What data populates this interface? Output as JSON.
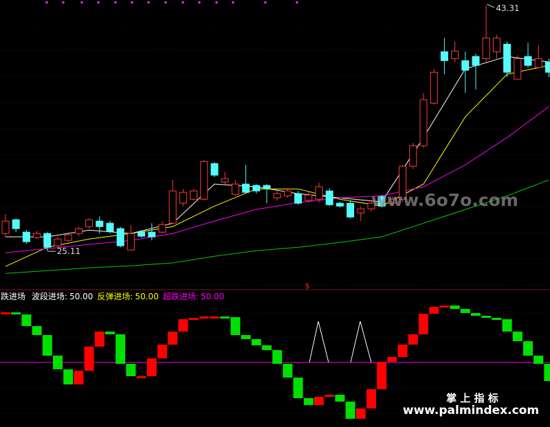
{
  "chart_data": [
    {
      "type": "candlestick",
      "ylim": [
        22.37,
        43.72
      ],
      "up_color": "#ff3c3c",
      "down_color": "#54fcfc",
      "open": [
        26.43,
        27.45,
        26.53,
        26.13,
        26.43,
        25.52,
        25.92,
        26.43,
        26.94,
        27.35,
        27.19,
        26.79,
        25.21,
        26.53,
        26.53,
        26.53,
        27.19,
        28.67,
        28.97,
        28.97,
        31.61,
        30.24,
        29.33,
        30.09,
        29.99,
        29.99,
        29.07,
        29.22,
        29.38,
        28.87,
        28.97,
        29.58,
        28.67,
        28.67,
        27.95,
        28.26,
        29.17,
        28.67,
        28.97,
        31.41,
        32.93,
        36.08,
        39.89,
        39.38,
        39.23,
        39.54,
        39.38,
        39.89,
        40.45,
        37.86,
        39.54,
        38.72,
        39.13
      ],
      "high": [
        27.85,
        27.55,
        26.68,
        26.63,
        26.53,
        26.18,
        26.53,
        26.94,
        27.55,
        27.7,
        27.35,
        26.94,
        27.04,
        26.68,
        27.19,
        27.35,
        30.39,
        29.73,
        29.73,
        31.87,
        31.71,
        31.0,
        30.39,
        31.51,
        30.09,
        30.09,
        29.58,
        29.78,
        29.58,
        29.48,
        30.19,
        29.78,
        28.77,
        28.87,
        28.46,
        28.87,
        29.28,
        29.17,
        31.51,
        33.14,
        36.84,
        38.62,
        40.91,
        40.65,
        39.89,
        39.74,
        43.31,
        41.16,
        40.65,
        39.64,
        40.55,
        40.4,
        39.38
      ],
      "low": [
        26.18,
        26.53,
        25.67,
        26.02,
        25.11,
        25.41,
        25.82,
        26.23,
        26.79,
        26.43,
        26.43,
        25.41,
        25.21,
        26.13,
        25.92,
        26.43,
        27.09,
        28.46,
        28.87,
        28.87,
        30.6,
        30.09,
        29.22,
        29.38,
        29.38,
        28.67,
        28.87,
        29.07,
        28.56,
        28.72,
        28.72,
        28.46,
        28.36,
        27.55,
        27.35,
        28.06,
        28.36,
        28.46,
        28.77,
        31.21,
        32.78,
        35.98,
        38.22,
        39.13,
        36.84,
        37.1,
        39.13,
        39.38,
        38.01,
        37.86,
        38.72,
        38.62,
        38.01
      ],
      "close": [
        27.35,
        26.79,
        25.82,
        26.43,
        25.41,
        26.02,
        26.33,
        26.79,
        27.45,
        26.94,
        26.58,
        25.52,
        26.43,
        26.23,
        26.18,
        27.09,
        29.58,
        29.48,
        29.58,
        31.76,
        30.75,
        30.49,
        30.09,
        29.48,
        29.58,
        29.78,
        29.38,
        29.58,
        28.67,
        29.28,
        29.89,
        28.56,
        28.46,
        27.65,
        28.26,
        28.67,
        28.46,
        28.97,
        31.41,
        32.93,
        36.34,
        38.37,
        39.23,
        39.94,
        38.52,
        38.88,
        40.91,
        40.91,
        38.37,
        39.38,
        38.88,
        39.38,
        38.37
      ],
      "lines": [
        {
          "color": "#ffffff",
          "x": [
            0,
            4,
            8,
            12,
            16,
            20,
            24,
            28,
            32,
            36,
            40,
            44,
            48,
            52
          ],
          "values": [
            26.18,
            26.18,
            26.68,
            26.43,
            27.19,
            30.09,
            29.89,
            29.38,
            29.07,
            28.77,
            33.54,
            38.62,
            39.54,
            39.13
          ]
        },
        {
          "color": "#ffff00",
          "x": [
            0,
            4,
            8,
            12,
            16,
            20,
            24,
            28,
            32,
            36,
            40,
            44,
            48,
            52
          ],
          "values": [
            23.99,
            25.41,
            26.02,
            26.43,
            26.94,
            28.46,
            29.73,
            29.73,
            28.97,
            28.46,
            30.09,
            35.07,
            38.22,
            38.88
          ]
        },
        {
          "color": "#ff00ff",
          "x": [
            0,
            4,
            8,
            12,
            16,
            20,
            24,
            28,
            32,
            36,
            40,
            44,
            48,
            52
          ],
          "values": [
            25.01,
            25.31,
            25.62,
            25.92,
            26.43,
            27.35,
            28.21,
            28.72,
            29.07,
            29.22,
            29.89,
            31.51,
            33.54,
            35.83
          ]
        },
        {
          "color": "#00d000",
          "x": [
            0,
            4,
            8,
            12,
            16,
            20,
            24,
            28,
            32,
            36,
            40,
            44,
            48,
            52
          ],
          "values": [
            23.48,
            23.68,
            23.89,
            24.04,
            24.25,
            24.75,
            25.16,
            25.41,
            25.77,
            26.18,
            27.19,
            28.21,
            29.22,
            30.39
          ]
        }
      ],
      "max_label": 43.31,
      "min_label": 25.11,
      "signal": "$",
      "watermark": "www.6o7o.com"
    },
    {
      "type": "step_bar",
      "ylim": [
        -5.95,
        113.1
      ],
      "up_color": "#ff0000",
      "down_color": "#00e000",
      "legend": [
        {
          "name": "跌进场",
          "color": "#ffffff"
        },
        {
          "name": "波段进场:",
          "value": {
            "value": 50,
            "label": "50.00"
          },
          "color": "#ffffff"
        },
        {
          "name": "反弹进场:",
          "value": {
            "value": 50,
            "label": "50.00"
          },
          "color": "#ffff00"
        },
        {
          "name": "超跌进场:",
          "value": {
            "value": 50,
            "label": "50.00"
          },
          "color": "#ff00ff"
        }
      ],
      "values": [
        93.45,
        91.67,
        81.55,
        73.81,
        55.95,
        44.05,
        30.95,
        42.86,
        63.69,
        76.79,
        74.4,
        48.81,
        38.1,
        38.1,
        53.57,
        65.48,
        76.79,
        87.5,
        88.69,
        89.88,
        89.88,
        89.29,
        73.81,
        70.24,
        64.88,
        60.71,
        48.81,
        36.9,
        19.05,
        13.1,
        20.24,
        22.02,
        16.07,
        1.19,
        10.12,
        26.79,
        50.6,
        54.76,
        65.48,
        74.4,
        92.26,
        98.21,
        99.4,
        96.43,
        92.86,
        90.48,
        88.69,
        87.5,
        76.79,
        68.45,
        55.95,
        48.81,
        33.93
      ]
    }
  ],
  "footer": {
    "brand": "掌 上 指 标",
    "url": "www.palmindex.com"
  }
}
